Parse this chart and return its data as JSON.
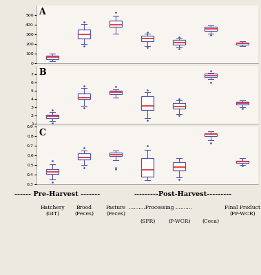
{
  "panel_A": {
    "label": "A",
    "ylim": [
      0,
      600
    ],
    "yticks": [
      0,
      100,
      200,
      300,
      400,
      500
    ],
    "boxes": [
      {
        "x": 1,
        "q1": 40,
        "med": 60,
        "q3": 80,
        "whislo": 20,
        "whishi": 100,
        "fliers": []
      },
      {
        "x": 2,
        "q1": 260,
        "med": 300,
        "q3": 350,
        "whislo": 200,
        "whishi": 410,
        "fliers": [
          180,
          430
        ]
      },
      {
        "x": 3,
        "q1": 375,
        "med": 400,
        "q3": 440,
        "whislo": 310,
        "whishi": 490,
        "fliers": [
          525
        ]
      },
      {
        "x": 4,
        "q1": 225,
        "med": 255,
        "q3": 285,
        "whislo": 180,
        "whishi": 305,
        "fliers": [
          165,
          320
        ]
      },
      {
        "x": 5,
        "q1": 190,
        "med": 215,
        "q3": 240,
        "whislo": 165,
        "whishi": 255,
        "fliers": [
          150,
          270
        ]
      },
      {
        "x": 6,
        "q1": 335,
        "med": 355,
        "q3": 375,
        "whislo": 305,
        "whishi": 390,
        "fliers": [
          295
        ]
      },
      {
        "x": 7,
        "q1": 190,
        "med": 205,
        "q3": 215,
        "whislo": 180,
        "whishi": 225,
        "fliers": []
      }
    ]
  },
  "panel_B": {
    "label": "B",
    "ylim": [
      1,
      8
    ],
    "yticks": [
      1,
      2,
      3,
      4,
      5,
      6,
      7
    ],
    "boxes": [
      {
        "x": 1,
        "q1": 1.7,
        "med": 1.9,
        "q3": 2.1,
        "whislo": 1.3,
        "whishi": 2.4,
        "fliers": [
          1.1,
          2.7
        ]
      },
      {
        "x": 2,
        "q1": 4.0,
        "med": 4.2,
        "q3": 4.7,
        "whislo": 3.2,
        "whishi": 5.3,
        "fliers": [
          2.9,
          5.6
        ]
      },
      {
        "x": 3,
        "q1": 4.6,
        "med": 4.8,
        "q3": 5.0,
        "whislo": 4.2,
        "whishi": 5.2,
        "fliers": [
          5.5
        ]
      },
      {
        "x": 4,
        "q1": 2.7,
        "med": 3.2,
        "q3": 4.3,
        "whislo": 1.7,
        "whishi": 4.8,
        "fliers": [
          1.4,
          5.1
        ]
      },
      {
        "x": 5,
        "q1": 2.8,
        "med": 3.1,
        "q3": 3.5,
        "whislo": 2.2,
        "whishi": 3.8,
        "fliers": [
          2.0,
          4.0
        ]
      },
      {
        "x": 6,
        "q1": 6.7,
        "med": 6.85,
        "q3": 7.05,
        "whislo": 6.4,
        "whishi": 7.2,
        "fliers": [
          6.0,
          7.4
        ]
      },
      {
        "x": 7,
        "q1": 3.3,
        "med": 3.5,
        "q3": 3.65,
        "whislo": 3.0,
        "whishi": 3.85,
        "fliers": [
          2.8
        ]
      }
    ]
  },
  "panel_C": {
    "label": "C",
    "ylim": [
      0.3,
      0.9
    ],
    "yticks": [
      0.3,
      0.4,
      0.5,
      0.6,
      0.7,
      0.8,
      0.9
    ],
    "boxes": [
      {
        "x": 1,
        "q1": 0.41,
        "med": 0.43,
        "q3": 0.46,
        "whislo": 0.35,
        "whishi": 0.51,
        "fliers": [
          0.32,
          0.54
        ]
      },
      {
        "x": 2,
        "q1": 0.56,
        "med": 0.58,
        "q3": 0.62,
        "whislo": 0.5,
        "whishi": 0.65,
        "fliers": [
          0.47,
          0.68
        ]
      },
      {
        "x": 3,
        "q1": 0.59,
        "med": 0.61,
        "q3": 0.63,
        "whislo": 0.55,
        "whishi": 0.65,
        "fliers": [
          0.46,
          0.47
        ]
      },
      {
        "x": 4,
        "q1": 0.38,
        "med": 0.45,
        "q3": 0.57,
        "whislo": 0.34,
        "whishi": 0.66,
        "fliers": [
          0.7
        ]
      },
      {
        "x": 5,
        "q1": 0.44,
        "med": 0.48,
        "q3": 0.53,
        "whislo": 0.37,
        "whishi": 0.57,
        "fliers": [
          0.35
        ]
      },
      {
        "x": 6,
        "q1": 0.8,
        "med": 0.82,
        "q3": 0.83,
        "whislo": 0.76,
        "whishi": 0.85,
        "fliers": [
          0.73
        ]
      },
      {
        "x": 7,
        "q1": 0.52,
        "med": 0.535,
        "q3": 0.545,
        "whislo": 0.5,
        "whishi": 0.57,
        "fliers": [
          0.49
        ]
      }
    ]
  },
  "box_color": "#5555aa",
  "median_color": "#dd3333",
  "flier_color": "#5555aa",
  "bg_color": "#ede8e0",
  "plot_bg": "#f8f5f0",
  "pre_harvest_label": "------ Pre-Harvest -------",
  "post_harvest_label": "---------Post-Harvest---------",
  "processing_label": "..........Processing ..........",
  "cat_labels": [
    "Hatchery\n(GIT)",
    "Brood\n(Feces)",
    "Pasture\n(Feces)",
    "(SFR)",
    "(P-WCR)",
    "(Ceca)",
    "Final Product\n(FP-WCR)"
  ]
}
